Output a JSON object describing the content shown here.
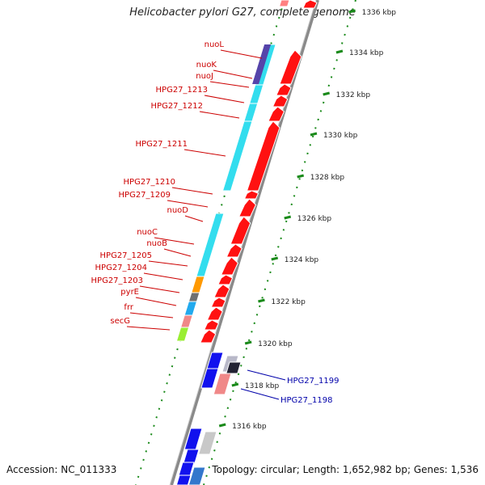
{
  "title": "Helicobacter pylori G27, complete genome",
  "footer": {
    "accession": "Accession: NC_011333",
    "summary": "Topology: circular; Length: 1,652,982 bp; Genes: 1,536"
  },
  "colors": {
    "forward_label": "#cc0000",
    "reverse_label": "#0000aa",
    "backbone": "#888888",
    "tick": "#1a8a1a"
  },
  "scale_labels": [
    {
      "kbp": 1336,
      "text": "1336 kbp"
    },
    {
      "kbp": 1334,
      "text": "1334 kbp"
    },
    {
      "kbp": 1332,
      "text": "1332 kbp"
    },
    {
      "kbp": 1330,
      "text": "1330 kbp"
    },
    {
      "kbp": 1328,
      "text": "1328 kbp"
    },
    {
      "kbp": 1326,
      "text": "1326 kbp"
    },
    {
      "kbp": 1324,
      "text": "1324 kbp"
    },
    {
      "kbp": 1322,
      "text": "1322 kbp"
    },
    {
      "kbp": 1320,
      "text": "1320 kbp"
    },
    {
      "kbp": 1318,
      "text": "1318 kbp"
    },
    {
      "kbp": 1316,
      "text": "1316 kbp"
    }
  ],
  "gene_labels_left": [
    {
      "text": "nuoL"
    },
    {
      "text": "nuoK"
    },
    {
      "text": "nuoJ"
    },
    {
      "text": "HPG27_1213"
    },
    {
      "text": "HPG27_1212"
    },
    {
      "text": "HPG27_1211"
    },
    {
      "text": "HPG27_1210"
    },
    {
      "text": "HPG27_1209"
    },
    {
      "text": "nuoD"
    },
    {
      "text": "nuoC"
    },
    {
      "text": "nuoB"
    },
    {
      "text": "HPG27_1205"
    },
    {
      "text": "HPG27_1204"
    },
    {
      "text": "HPG27_1203"
    },
    {
      "text": "pyrE"
    },
    {
      "text": "frr"
    },
    {
      "text": "secG"
    }
  ],
  "gene_labels_right": [
    {
      "text": "HPG27_1199"
    },
    {
      "text": "HPG27_1198"
    }
  ]
}
